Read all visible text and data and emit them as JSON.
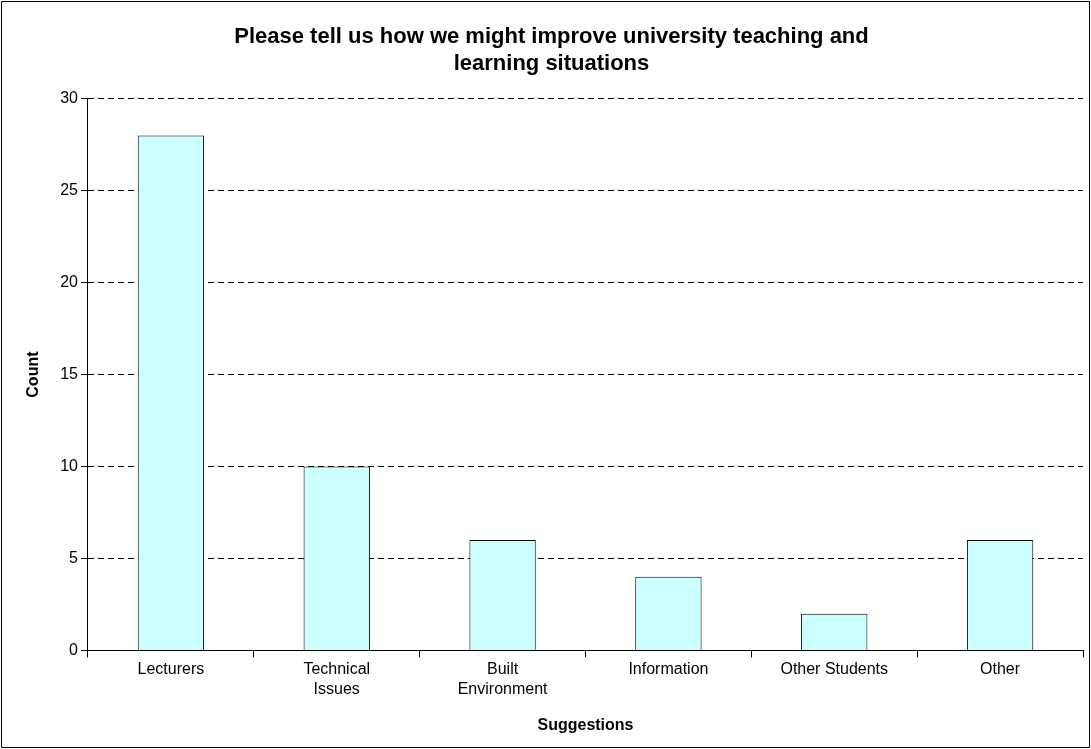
{
  "chart_data": {
    "type": "bar",
    "title": "Please tell us how we might improve university teaching and learning situations",
    "xlabel": "Suggestions",
    "ylabel": "Count",
    "categories": [
      "Lecturers",
      "Technical Issues",
      "Built Environment",
      "Information",
      "Other Students",
      "Other"
    ],
    "values": [
      28,
      10,
      6,
      4,
      2,
      6
    ],
    "color": "#ccffff",
    "ylim": [
      0,
      30
    ],
    "yticks": [
      0,
      5,
      10,
      15,
      20,
      25,
      30
    ],
    "grid": "y",
    "legend": false
  }
}
